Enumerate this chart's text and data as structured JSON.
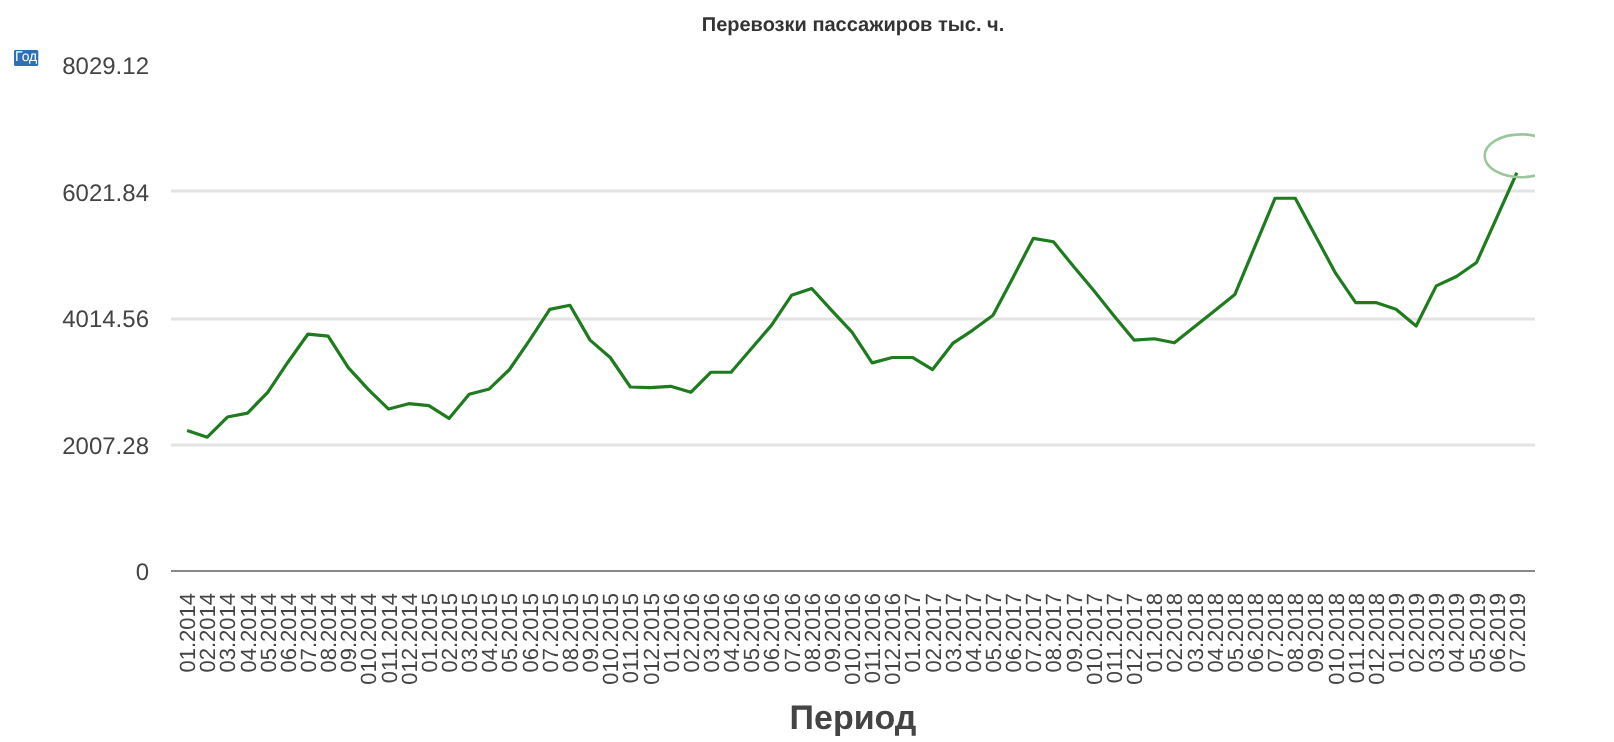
{
  "chart_data": {
    "type": "line",
    "title": "Перевозки пассажиров тыс. ч.",
    "xlabel": "Период",
    "annotations": [
      "Год"
    ],
    "categories": [
      "01.2014",
      "02.2014",
      "03.2014",
      "04.2014",
      "05.2014",
      "06.2014",
      "07.2014",
      "08.2014",
      "09.2014",
      "010.2014",
      "011.2014",
      "012.2014",
      "01.2015",
      "02.2015",
      "03.2015",
      "04.2015",
      "05.2015",
      "06.2015",
      "07.2015",
      "08.2015",
      "09.2015",
      "010.2015",
      "011.2015",
      "012.2015",
      "01.2016",
      "02.2016",
      "03.2016",
      "04.2016",
      "05.2016",
      "06.2016",
      "07.2016",
      "08.2016",
      "09.2016",
      "010.2016",
      "011.2016",
      "012.2016",
      "01.2017",
      "02.2017",
      "03.2017",
      "04.2017",
      "05.2017",
      "06.2017",
      "07.2017",
      "08.2017",
      "09.2017",
      "010.2017",
      "011.2017",
      "012.2017",
      "01.2018",
      "02.2018",
      "03.2018",
      "04.2018",
      "05.2018",
      "06.2018",
      "07.2018",
      "08.2018",
      "09.2018",
      "010.2018",
      "011.2018",
      "012.2018",
      "01.2019",
      "02.2019",
      "03.2019",
      "04.2019",
      "05.2019",
      "06.2019",
      "07.2019"
    ],
    "series": [
      {
        "color": "#1e7b1e",
        "values": [
          2230,
          2124,
          2443,
          2506,
          2836,
          3313,
          3760,
          3728,
          3228,
          2878,
          2570,
          2655,
          2623,
          2421,
          2804,
          2889,
          3197,
          3664,
          4152,
          4216,
          3664,
          3388,
          2920,
          2910,
          2931,
          2836,
          3154,
          3154,
          3526,
          3898,
          4375,
          4482,
          4131,
          3791,
          3303,
          3388,
          3388,
          3197,
          3611,
          3823,
          4057,
          4662,
          5278,
          5225,
          4830,
          4450,
          4050,
          3664,
          3685,
          3621,
          3876,
          4131,
          4386,
          5151,
          5915,
          5915,
          5321,
          4726,
          4259,
          4259,
          4152,
          3887,
          4524,
          4673,
          4896,
          5607,
          6319
        ]
      }
    ],
    "ylim": [
      0,
      8029.12
    ],
    "yticks": [
      0,
      2007.28,
      4014.56,
      6021.84,
      8029.12
    ],
    "grid": "y",
    "marker": "none",
    "line_style": "solid"
  }
}
